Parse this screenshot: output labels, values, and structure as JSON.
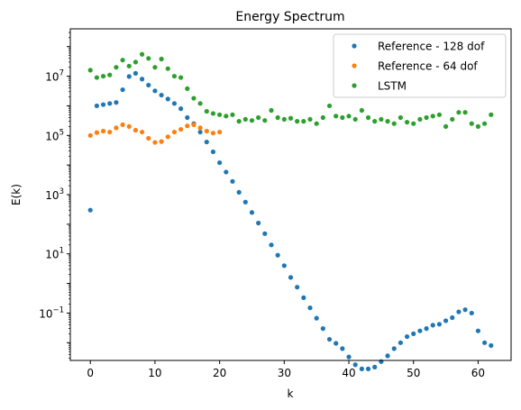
{
  "chart_data": {
    "type": "scatter",
    "title": "Energy Spectrum",
    "xlabel": "k",
    "ylabel": "E(k)",
    "yscale": "log",
    "xlim": [
      -3.1,
      65.1
    ],
    "ylim_log10": [
      -2.6,
      8.6
    ],
    "x_ticks": [
      0,
      10,
      20,
      30,
      40,
      50,
      60
    ],
    "y_ticks": [
      {
        "exp": -1,
        "label": "10",
        "sup": "−1"
      },
      {
        "exp": 1,
        "label": "10",
        "sup": "1"
      },
      {
        "exp": 3,
        "label": "10",
        "sup": "3"
      },
      {
        "exp": 5,
        "label": "10",
        "sup": "5"
      },
      {
        "exp": 7,
        "label": "10",
        "sup": "7"
      }
    ],
    "legend_position": "upper right",
    "series": [
      {
        "name": "Reference - 128 dof",
        "color": "#1f77b4",
        "x": [
          0,
          1,
          2,
          3,
          4,
          5,
          6,
          7,
          8,
          9,
          10,
          11,
          12,
          13,
          14,
          15,
          16,
          17,
          18,
          19,
          20,
          21,
          22,
          23,
          24,
          25,
          26,
          27,
          28,
          29,
          30,
          31,
          32,
          33,
          34,
          35,
          36,
          37,
          38,
          39,
          40,
          41,
          42,
          43,
          44,
          45,
          46,
          47,
          48,
          49,
          50,
          51,
          52,
          53,
          54,
          55,
          56,
          57,
          58,
          59,
          60,
          61,
          62
        ],
        "y": [
          300,
          1000000,
          1100000,
          1200000,
          1300000,
          3500000,
          9800000,
          12500000,
          8000000,
          5000000,
          3200000,
          2300000,
          1700000,
          1200000,
          800000,
          400000,
          250000,
          130000,
          60000,
          28000,
          12000,
          5800,
          2800,
          1200,
          560,
          250,
          110,
          48,
          20,
          9,
          4,
          1.6,
          0.75,
          0.33,
          0.15,
          0.067,
          0.03,
          0.013,
          0.0095,
          0.0063,
          0.0033,
          0.0018,
          0.0013,
          0.0013,
          0.0015,
          0.0023,
          0.0036,
          0.0063,
          0.01,
          0.016,
          0.02,
          0.025,
          0.03,
          0.039,
          0.042,
          0.055,
          0.07,
          0.11,
          0.13,
          0.1,
          0.025,
          0.01,
          0.008
        ]
      },
      {
        "name": "Reference - 64 dof",
        "color": "#ff7f0e",
        "x": [
          0,
          1,
          2,
          3,
          4,
          5,
          6,
          7,
          8,
          9,
          10,
          11,
          12,
          13,
          14,
          15,
          16,
          17,
          18,
          19,
          20
        ],
        "y": [
          100000,
          125000,
          140000,
          130000,
          180000,
          230000,
          200000,
          150000,
          130000,
          80000,
          58000,
          62000,
          90000,
          130000,
          160000,
          210000,
          230000,
          180000,
          140000,
          120000,
          130000
        ]
      },
      {
        "name": "LSTM",
        "color": "#2ca02c",
        "x": [
          0,
          1,
          2,
          3,
          4,
          5,
          6,
          7,
          8,
          9,
          10,
          11,
          12,
          13,
          14,
          15,
          16,
          17,
          18,
          19,
          20,
          21,
          22,
          23,
          24,
          25,
          26,
          27,
          28,
          29,
          30,
          31,
          32,
          33,
          34,
          35,
          36,
          37,
          38,
          39,
          40,
          41,
          42,
          43,
          44,
          45,
          46,
          47,
          48,
          49,
          50,
          51,
          52,
          53,
          54,
          55,
          56,
          57,
          58,
          59,
          60,
          61,
          62
        ],
        "y": [
          16000000,
          9000000,
          10000000,
          11000000,
          20000000,
          35000000,
          22000000,
          30000000,
          55000000,
          40000000,
          20000000,
          38000000,
          18000000,
          10000000,
          9000000,
          3800000,
          1800000,
          1200000,
          650000,
          550000,
          500000,
          450000,
          500000,
          300000,
          350000,
          320000,
          400000,
          320000,
          700000,
          400000,
          350000,
          380000,
          300000,
          300000,
          350000,
          250000,
          400000,
          1000000,
          450000,
          400000,
          450000,
          350000,
          700000,
          400000,
          300000,
          350000,
          300000,
          250000,
          400000,
          280000,
          250000,
          350000,
          400000,
          450000,
          500000,
          200000,
          350000,
          600000,
          600000,
          250000,
          200000,
          250000,
          500000
        ]
      }
    ]
  }
}
